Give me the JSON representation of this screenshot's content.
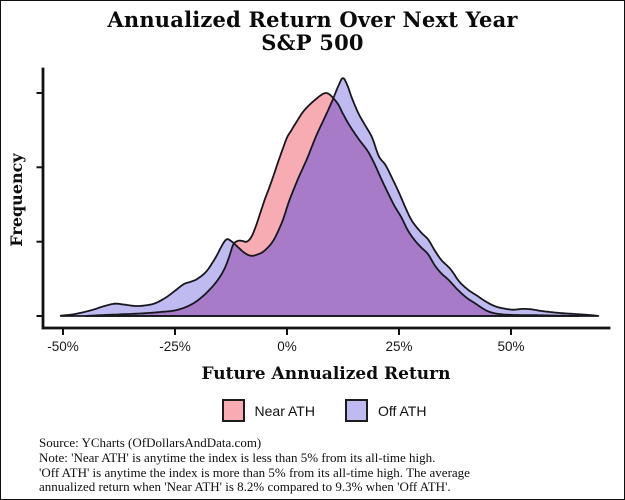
{
  "title": {
    "line1": "Annualized Return Over Next Year",
    "line2": "S&P 500"
  },
  "chart_data": {
    "type": "area",
    "subtype": "density",
    "title": "Annualized Return Over Next Year",
    "subtitle": "S&P 500",
    "xlabel": "Future Annualized Return",
    "ylabel": "Frequency",
    "legend_position": "bottom",
    "grid": false,
    "xlim": [
      -54.5,
      71.9
    ],
    "ylim": [
      0,
      3.45
    ],
    "x_ticks": [
      {
        "value": -50,
        "label": "-50%"
      },
      {
        "value": -25,
        "label": "-25%"
      },
      {
        "value": 0,
        "label": "0%"
      },
      {
        "value": 25,
        "label": "25%"
      },
      {
        "value": 50,
        "label": "50%"
      }
    ],
    "y_ticks": [
      0,
      1,
      2,
      3
    ],
    "y_tick_labels_visible": false,
    "outline": "#17171f",
    "axis_color": "#111111",
    "overlap_fill": "#a87bc8",
    "series": [
      {
        "name": "Near ATH",
        "fill": "#f7abb2",
        "points": [
          [
            -45,
            0
          ],
          [
            -42,
            0.01
          ],
          [
            -38,
            0.02
          ],
          [
            -34,
            0.03
          ],
          [
            -31,
            0.04
          ],
          [
            -28,
            0.055
          ],
          [
            -25.5,
            0.07
          ],
          [
            -23.5,
            0.1
          ],
          [
            -21.5,
            0.15
          ],
          [
            -19.5,
            0.23
          ],
          [
            -17.5,
            0.34
          ],
          [
            -15.5,
            0.48
          ],
          [
            -14,
            0.63
          ],
          [
            -13,
            0.78
          ],
          [
            -12,
            0.96
          ],
          [
            -11,
            1.01
          ],
          [
            -10,
            1.01
          ],
          [
            -9,
            1.0
          ],
          [
            -8,
            1.06
          ],
          [
            -7,
            1.2
          ],
          [
            -6,
            1.38
          ],
          [
            -5,
            1.56
          ],
          [
            -4,
            1.72
          ],
          [
            -3,
            1.89
          ],
          [
            -2,
            2.07
          ],
          [
            -1,
            2.24
          ],
          [
            0,
            2.4
          ],
          [
            1,
            2.5
          ],
          [
            2,
            2.6
          ],
          [
            3.5,
            2.74
          ],
          [
            5,
            2.84
          ],
          [
            6.5,
            2.92
          ],
          [
            7.8,
            2.98
          ],
          [
            8.7,
            3.0
          ],
          [
            9.5,
            2.98
          ],
          [
            10.5,
            2.92
          ],
          [
            11.5,
            2.84
          ],
          [
            12.5,
            2.72
          ],
          [
            14,
            2.56
          ],
          [
            16,
            2.38
          ],
          [
            18,
            2.22
          ],
          [
            19.5,
            2.05
          ],
          [
            21,
            1.85
          ],
          [
            22.5,
            1.66
          ],
          [
            24,
            1.48
          ],
          [
            25.5,
            1.33
          ],
          [
            27,
            1.15
          ],
          [
            28.5,
            1.02
          ],
          [
            30,
            0.92
          ],
          [
            31.5,
            0.83
          ],
          [
            33,
            0.68
          ],
          [
            34.5,
            0.57
          ],
          [
            36,
            0.49
          ],
          [
            38,
            0.36
          ],
          [
            40,
            0.25
          ],
          [
            42,
            0.17
          ],
          [
            44,
            0.09
          ],
          [
            45.5,
            0.05
          ],
          [
            47.5,
            0.025
          ],
          [
            50,
            0.015
          ],
          [
            53,
            0.012
          ],
          [
            56,
            0.01
          ],
          [
            60,
            0.006
          ],
          [
            65,
            0
          ]
        ]
      },
      {
        "name": "Off ATH",
        "fill": "#bfbaef",
        "points": [
          [
            -50.5,
            0.005
          ],
          [
            -48,
            0.02
          ],
          [
            -45.5,
            0.05
          ],
          [
            -43,
            0.09
          ],
          [
            -41,
            0.13
          ],
          [
            -38.5,
            0.165
          ],
          [
            -36.5,
            0.155
          ],
          [
            -34,
            0.135
          ],
          [
            -32,
            0.14
          ],
          [
            -29.5,
            0.17
          ],
          [
            -27,
            0.25
          ],
          [
            -25,
            0.34
          ],
          [
            -23,
            0.43
          ],
          [
            -21.5,
            0.46
          ],
          [
            -20,
            0.5
          ],
          [
            -18,
            0.6
          ],
          [
            -16,
            0.78
          ],
          [
            -14.5,
            0.95
          ],
          [
            -13.5,
            1.03
          ],
          [
            -12.5,
            1.01
          ],
          [
            -11,
            0.93
          ],
          [
            -9.5,
            0.85
          ],
          [
            -8,
            0.81
          ],
          [
            -6.5,
            0.83
          ],
          [
            -5,
            0.88
          ],
          [
            -3,
            1.02
          ],
          [
            -1,
            1.28
          ],
          [
            0.5,
            1.55
          ],
          [
            2.5,
            1.85
          ],
          [
            4.5,
            2.12
          ],
          [
            6.5,
            2.42
          ],
          [
            8.5,
            2.68
          ],
          [
            10,
            2.88
          ],
          [
            11.5,
            3.1
          ],
          [
            12.5,
            3.2
          ],
          [
            13.5,
            3.1
          ],
          [
            14.5,
            2.93
          ],
          [
            16,
            2.72
          ],
          [
            17.5,
            2.56
          ],
          [
            19,
            2.4
          ],
          [
            20.5,
            2.15
          ],
          [
            22,
            2.03
          ],
          [
            23.5,
            1.85
          ],
          [
            25,
            1.66
          ],
          [
            26.5,
            1.45
          ],
          [
            28,
            1.27
          ],
          [
            30,
            1.12
          ],
          [
            31.5,
            1.03
          ],
          [
            33,
            0.88
          ],
          [
            34.5,
            0.75
          ],
          [
            36.5,
            0.63
          ],
          [
            38.5,
            0.46
          ],
          [
            40.5,
            0.35
          ],
          [
            42.5,
            0.27
          ],
          [
            44.5,
            0.19
          ],
          [
            46.5,
            0.13
          ],
          [
            48.5,
            0.1
          ],
          [
            50.5,
            0.085
          ],
          [
            52.5,
            0.095
          ],
          [
            54.5,
            0.09
          ],
          [
            56.5,
            0.07
          ],
          [
            58.5,
            0.055
          ],
          [
            61,
            0.04
          ],
          [
            63.5,
            0.03
          ],
          [
            66,
            0.02
          ],
          [
            68.5,
            0.008
          ],
          [
            69.5,
            0
          ]
        ]
      }
    ],
    "notes": {
      "avg_return_near_ath": "8.2%",
      "avg_return_off_ath": "9.3%"
    }
  },
  "legend": [
    {
      "label": "Near ATH",
      "color": "#f7abb2"
    },
    {
      "label": "Off ATH",
      "color": "#bfbaef"
    }
  ],
  "footer": {
    "lines": [
      "Source: YCharts (OfDollarsAndData.com)",
      "Note: 'Near ATH' is anytime the index is less than 5% from its all-time high.",
      "'Off ATH' is anytime the index is more than 5% from its all-time high. The average",
      "annualized return when 'Near ATH' is 8.2% compared to 9.3% when 'Off ATH'."
    ]
  }
}
